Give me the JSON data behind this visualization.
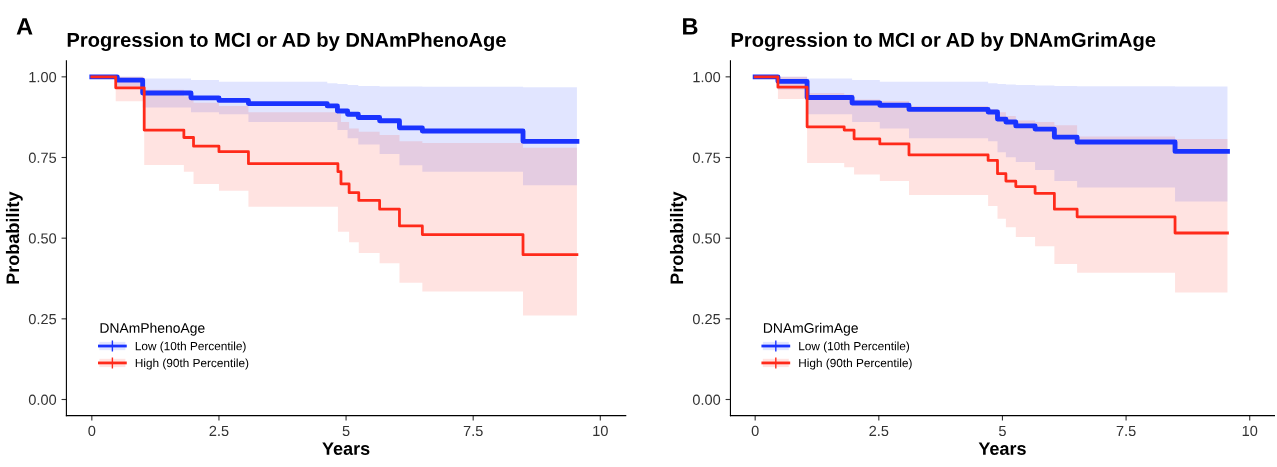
{
  "chart_data": [
    {
      "type": "step",
      "title": "Progression to MCI or AD by DNAmPhenoAge",
      "xlabel": "Years",
      "ylabel": "Probability",
      "legend_title": "DNAmPhenoAge",
      "annotations": [
        "A"
      ],
      "xlim": [
        -0.5,
        10.5
      ],
      "ylim": [
        -0.05,
        1.05
      ],
      "xticks": [
        0,
        2.5,
        5,
        7.5,
        10
      ],
      "yticks": [
        {
          "value": 0,
          "label": "0.00"
        },
        {
          "value": 0.25,
          "label": "0.25"
        },
        {
          "value": 0.5,
          "label": "0.50"
        },
        {
          "value": 0.75,
          "label": "0.75"
        },
        {
          "value": 1,
          "label": "1.00"
        }
      ],
      "grid": false,
      "legend": "bottom left",
      "series": [
        {
          "name": "Low (10th Percentile)",
          "color": "#1a33ff",
          "x": [
            0,
            0.5,
            1.0,
            1.95,
            2.5,
            3.08,
            4.63,
            4.83,
            5.03,
            5.24,
            5.66,
            6.05,
            6.5,
            8.48,
            9.54
          ],
          "values": [
            1,
            0.99,
            0.95,
            0.935,
            0.927,
            0.917,
            0.91,
            0.894,
            0.884,
            0.874,
            0.864,
            0.842,
            0.832,
            0.8,
            0.8
          ],
          "lower": [
            1,
            0.97,
            0.905,
            0.89,
            0.884,
            0.86,
            0.86,
            0.835,
            0.81,
            0.79,
            0.761,
            0.726,
            0.706,
            0.664,
            0.664
          ],
          "upper": [
            1,
            1,
            0.995,
            0.99,
            0.985,
            0.985,
            0.98,
            0.978,
            0.975,
            0.972,
            0.97,
            0.97,
            0.969,
            0.968,
            0.968
          ]
        },
        {
          "name": "High (90th Percentile)",
          "color": "#ff2a1a",
          "x": [
            0,
            0.47,
            1.03,
            1.81,
            2.0,
            2.5,
            3.08,
            4.84,
            4.9,
            5.06,
            5.25,
            5.66,
            6.05,
            6.5,
            8.48,
            9.54
          ],
          "values": [
            1,
            0.966,
            0.835,
            0.812,
            0.785,
            0.768,
            0.731,
            0.706,
            0.668,
            0.641,
            0.617,
            0.59,
            0.538,
            0.511,
            0.449,
            0.449
          ],
          "lower": [
            1,
            0.924,
            0.727,
            0.706,
            0.668,
            0.647,
            0.597,
            0.52,
            0.52,
            0.487,
            0.454,
            0.422,
            0.362,
            0.335,
            0.26,
            0.26
          ],
          "upper": [
            1,
            1,
            0.96,
            0.94,
            0.92,
            0.91,
            0.89,
            0.885,
            0.86,
            0.84,
            0.83,
            0.82,
            0.8,
            0.795,
            0.78,
            0.78
          ]
        }
      ]
    },
    {
      "type": "step",
      "title": "Progression to MCI or AD by DNAmGrimAge",
      "xlabel": "Years",
      "ylabel": "Probability",
      "legend_title": "DNAmGrimAge",
      "annotations": [
        "B"
      ],
      "xlim": [
        -0.5,
        10.5
      ],
      "ylim": [
        -0.05,
        1.05
      ],
      "xticks": [
        0,
        2.5,
        5,
        7.5,
        10
      ],
      "yticks": [
        {
          "value": 0,
          "label": "0.00"
        },
        {
          "value": 0.25,
          "label": "0.25"
        },
        {
          "value": 0.5,
          "label": "0.50"
        },
        {
          "value": 0.75,
          "label": "0.75"
        },
        {
          "value": 1,
          "label": "1.00"
        }
      ],
      "grid": false,
      "legend": "bottom left",
      "series": [
        {
          "name": "Low (10th Percentile)",
          "color": "#1a33ff",
          "x": [
            0,
            0.46,
            1.05,
            1.96,
            2.52,
            3.11,
            4.71,
            4.9,
            5.07,
            5.27,
            5.66,
            6.05,
            6.51,
            8.49,
            9.55
          ],
          "values": [
            1,
            0.986,
            0.936,
            0.919,
            0.912,
            0.899,
            0.891,
            0.869,
            0.86,
            0.848,
            0.838,
            0.813,
            0.798,
            0.769,
            0.769
          ],
          "lower": [
            1,
            0.96,
            0.884,
            0.86,
            0.84,
            0.81,
            0.8,
            0.766,
            0.751,
            0.736,
            0.711,
            0.677,
            0.657,
            0.614,
            0.614
          ],
          "upper": [
            1,
            1,
            0.995,
            0.99,
            0.985,
            0.985,
            0.98,
            0.978,
            0.976,
            0.975,
            0.973,
            0.972,
            0.971,
            0.97,
            0.97
          ]
        },
        {
          "name": "High (90th Percentile)",
          "color": "#ff2a1a",
          "x": [
            0,
            0.46,
            1.05,
            1.8,
            2.0,
            2.52,
            3.11,
            4.71,
            4.9,
            5.07,
            5.27,
            5.66,
            6.05,
            6.51,
            8.49,
            9.55
          ],
          "values": [
            1,
            0.968,
            0.845,
            0.835,
            0.808,
            0.792,
            0.758,
            0.741,
            0.7,
            0.677,
            0.66,
            0.639,
            0.59,
            0.566,
            0.516,
            0.516
          ],
          "lower": [
            1,
            0.931,
            0.733,
            0.72,
            0.697,
            0.677,
            0.634,
            0.6,
            0.56,
            0.534,
            0.504,
            0.475,
            0.42,
            0.393,
            0.332,
            0.332
          ],
          "upper": [
            1,
            1,
            0.95,
            0.945,
            0.93,
            0.925,
            0.91,
            0.9,
            0.89,
            0.879,
            0.865,
            0.86,
            0.85,
            0.815,
            0.807,
            0.807
          ]
        }
      ]
    }
  ]
}
